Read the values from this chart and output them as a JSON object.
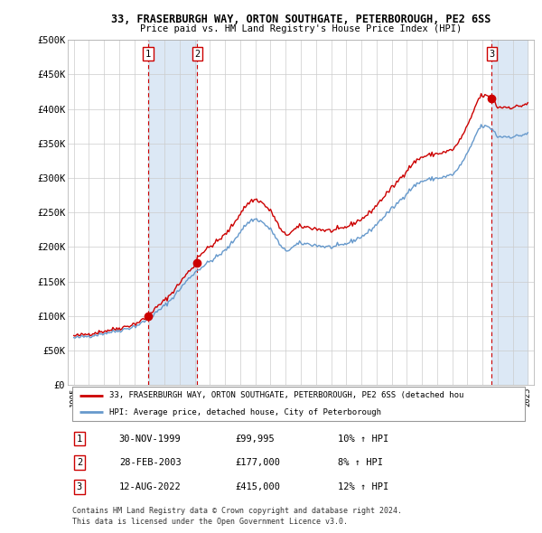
{
  "title": "33, FRASERBURGH WAY, ORTON SOUTHGATE, PETERBOROUGH, PE2 6SS",
  "subtitle": "Price paid vs. HM Land Registry's House Price Index (HPI)",
  "ylabel_ticks": [
    "£0",
    "£50K",
    "£100K",
    "£150K",
    "£200K",
    "£250K",
    "£300K",
    "£350K",
    "£400K",
    "£450K",
    "£500K"
  ],
  "ytick_values": [
    0,
    50000,
    100000,
    150000,
    200000,
    250000,
    300000,
    350000,
    400000,
    450000,
    500000
  ],
  "ylim": [
    0,
    500000
  ],
  "sale_dates_num": [
    1999.917,
    2003.163,
    2022.619
  ],
  "sale_prices": [
    99995,
    177000,
    415000
  ],
  "sale_labels": [
    "1",
    "2",
    "3"
  ],
  "marker_color": "#cc0000",
  "hpi_line_color": "#6699cc",
  "price_line_color": "#cc0000",
  "annotation_box_color": "#cc0000",
  "vertical_line_color": "#cc0000",
  "shade_color": "#dce8f5",
  "chart_bg_color": "#ffffff",
  "grid_color": "#cccccc",
  "legend_line_red": "#cc0000",
  "legend_line_blue": "#6699cc",
  "legend_entries": [
    "33, FRASERBURGH WAY, ORTON SOUTHGATE, PETERBOROUGH, PE2 6SS (detached hou",
    "HPI: Average price, detached house, City of Peterborough"
  ],
  "table_rows": [
    [
      "1",
      "30-NOV-1999",
      "£99,995",
      "10% ↑ HPI"
    ],
    [
      "2",
      "28-FEB-2003",
      "£177,000",
      "8% ↑ HPI"
    ],
    [
      "3",
      "12-AUG-2022",
      "£415,000",
      "12% ↑ HPI"
    ]
  ],
  "footer_line1": "Contains HM Land Registry data © Crown copyright and database right 2024.",
  "footer_line2": "This data is licensed under the Open Government Licence v3.0.",
  "xmin": 1994.6,
  "xmax": 2025.4,
  "xtick_years": [
    1995,
    1996,
    1997,
    1998,
    1999,
    2000,
    2001,
    2002,
    2003,
    2004,
    2005,
    2006,
    2007,
    2008,
    2009,
    2010,
    2011,
    2012,
    2013,
    2014,
    2015,
    2016,
    2017,
    2018,
    2019,
    2020,
    2021,
    2022,
    2023,
    2024,
    2025
  ]
}
